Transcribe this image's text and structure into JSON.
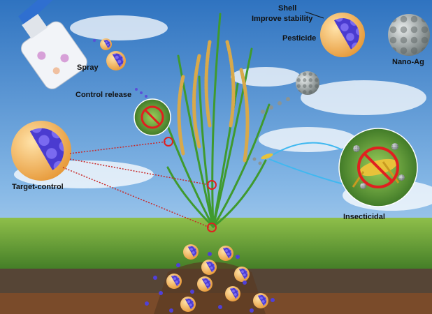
{
  "labels": {
    "shell": "Shell",
    "improve_stability": "Improve stability",
    "pesticide": "Pesticide",
    "nano_ag": "Nano-Ag",
    "spray": "Spray",
    "control_release": "Control release",
    "target_control": "Target-control",
    "insecticidal": "Insecticidal"
  }
}
